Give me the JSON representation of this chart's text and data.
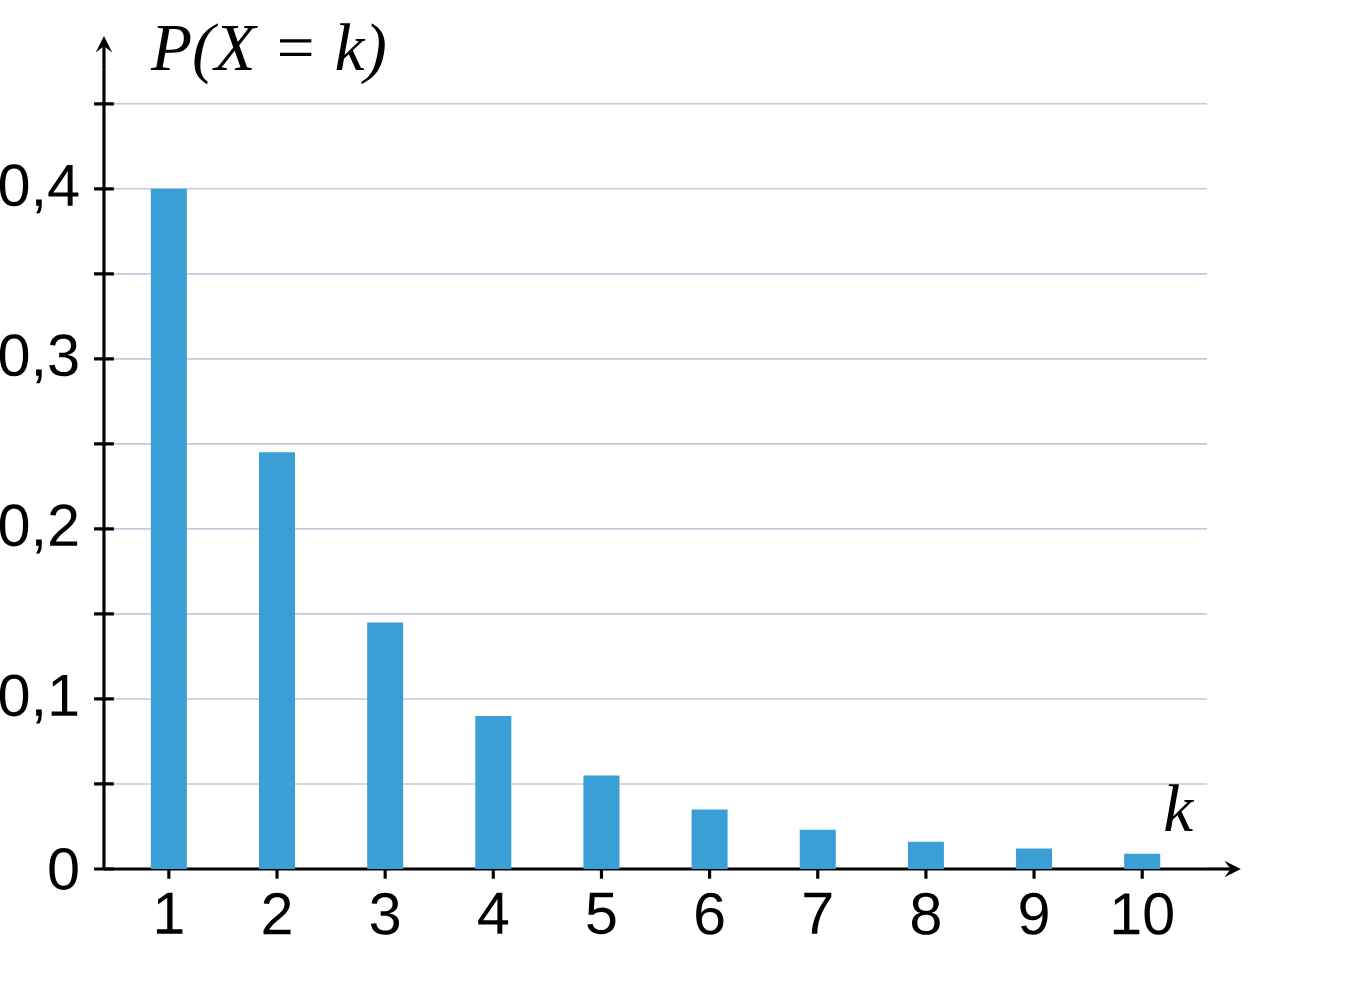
{
  "chart_data": {
    "type": "bar",
    "xlabel": "k",
    "ylabel": "P(X = k)",
    "categories": [
      "1",
      "2",
      "3",
      "4",
      "5",
      "6",
      "7",
      "8",
      "9",
      "10"
    ],
    "values": [
      0.4,
      0.245,
      0.145,
      0.09,
      0.055,
      0.035,
      0.023,
      0.016,
      0.012,
      0.009
    ],
    "color": "#3a9fd5",
    "ylim": [
      0,
      0.47
    ],
    "yticks": [
      0,
      {
        "value": 0.05,
        "label": null
      },
      {
        "value": 0.1,
        "label": "0,1"
      },
      {
        "value": 0.15,
        "label": null
      },
      {
        "value": 0.2,
        "label": "0,2"
      },
      {
        "value": 0.25,
        "label": null
      },
      {
        "value": 0.3,
        "label": "0,3"
      },
      {
        "value": 0.35,
        "label": null
      },
      {
        "value": 0.4,
        "label": "0,4"
      },
      {
        "value": 0.45,
        "label": null
      }
    ],
    "grid": "y"
  }
}
